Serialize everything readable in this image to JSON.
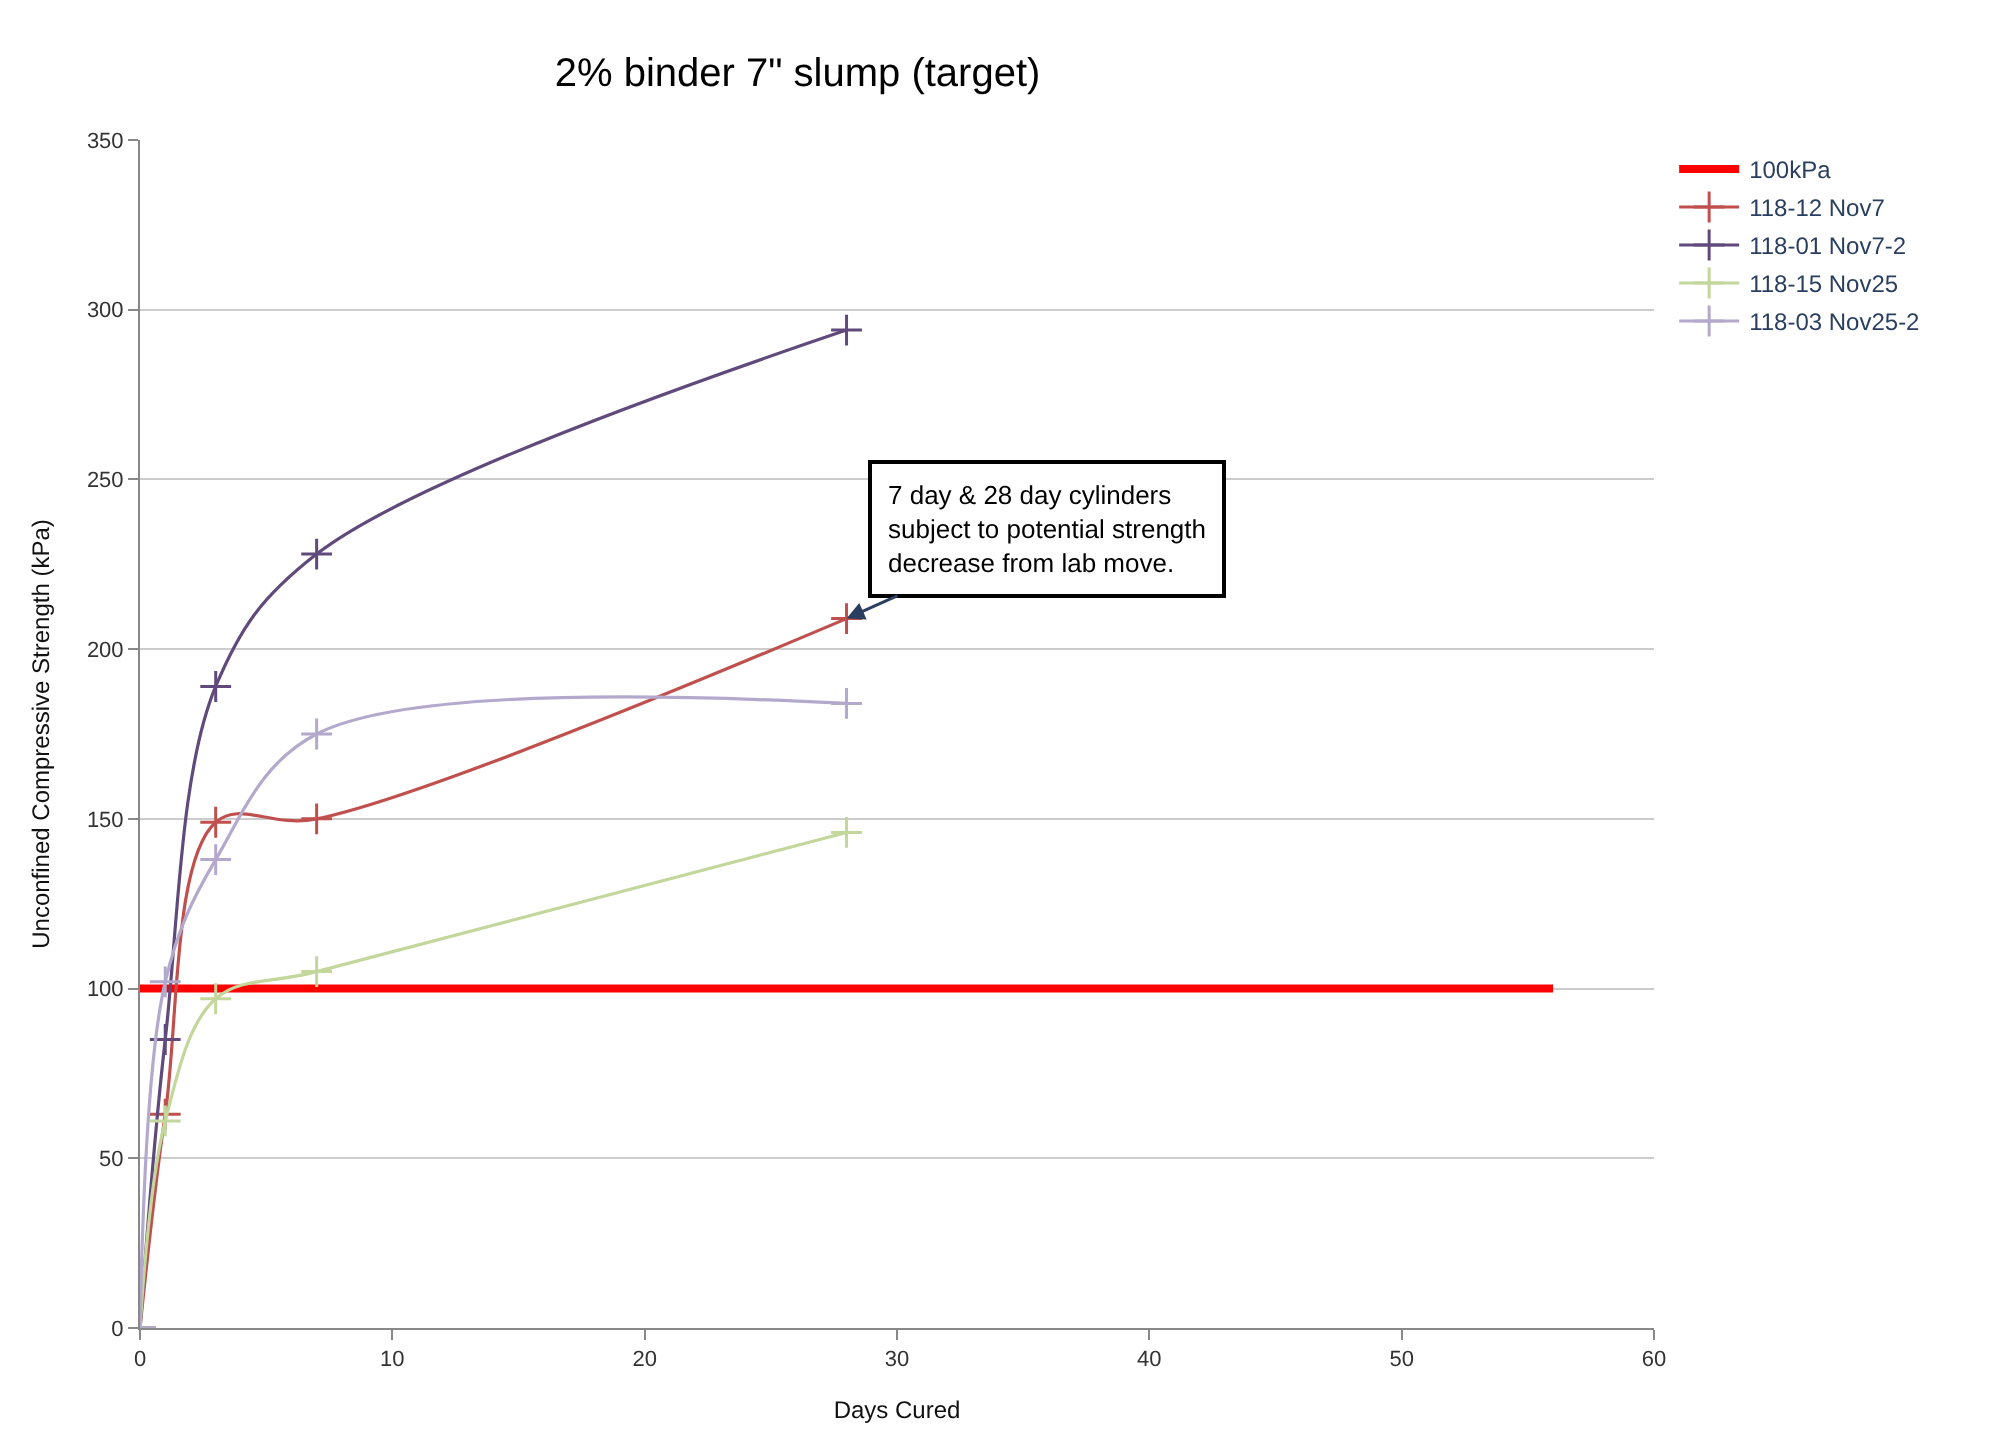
{
  "chart_data": {
    "type": "line",
    "title": "2% binder 7\" slump (target)",
    "xlabel": "Days Cured",
    "ylabel": "Unconfined Compressive Strength (kPa)",
    "xlim": [
      0,
      60
    ],
    "xticks": [
      0,
      10,
      20,
      30,
      40,
      50,
      60
    ],
    "ylim": [
      0,
      350
    ],
    "yticks": [
      0,
      50,
      100,
      150,
      200,
      250,
      300,
      350
    ],
    "grid": "y",
    "legend": "top right",
    "marker": "cross",
    "line_style": "solid",
    "series": [
      {
        "name": "100kPa",
        "color": "#ff0000",
        "x": [
          0,
          56
        ],
        "values": [
          100,
          100
        ],
        "marker": "none"
      },
      {
        "name": "118-12 Nov7",
        "color": "#c0504d",
        "x": [
          0,
          1,
          3,
          7,
          28
        ],
        "values": [
          0,
          63,
          149,
          150,
          209
        ]
      },
      {
        "name": "118-01 Nov7-2",
        "color": "#604a7b",
        "x": [
          0,
          1,
          3,
          7,
          28
        ],
        "values": [
          0,
          85,
          189,
          228,
          294
        ]
      },
      {
        "name": "118-15 Nov25",
        "color": "#c3d69b",
        "x": [
          0,
          1,
          3,
          7,
          28
        ],
        "values": [
          0,
          61,
          97,
          105,
          146
        ]
      },
      {
        "name": "118-03 Nov25-2",
        "color": "#b3a9cc",
        "x": [
          0,
          1,
          3,
          7,
          28
        ],
        "values": [
          0,
          102,
          138,
          175,
          184
        ]
      }
    ],
    "annotations": [
      {
        "text": "7 day & 28 day cylinders\nsubject to potential strength\ndecrease from lab move.",
        "x": 28,
        "y": 209
      }
    ]
  }
}
